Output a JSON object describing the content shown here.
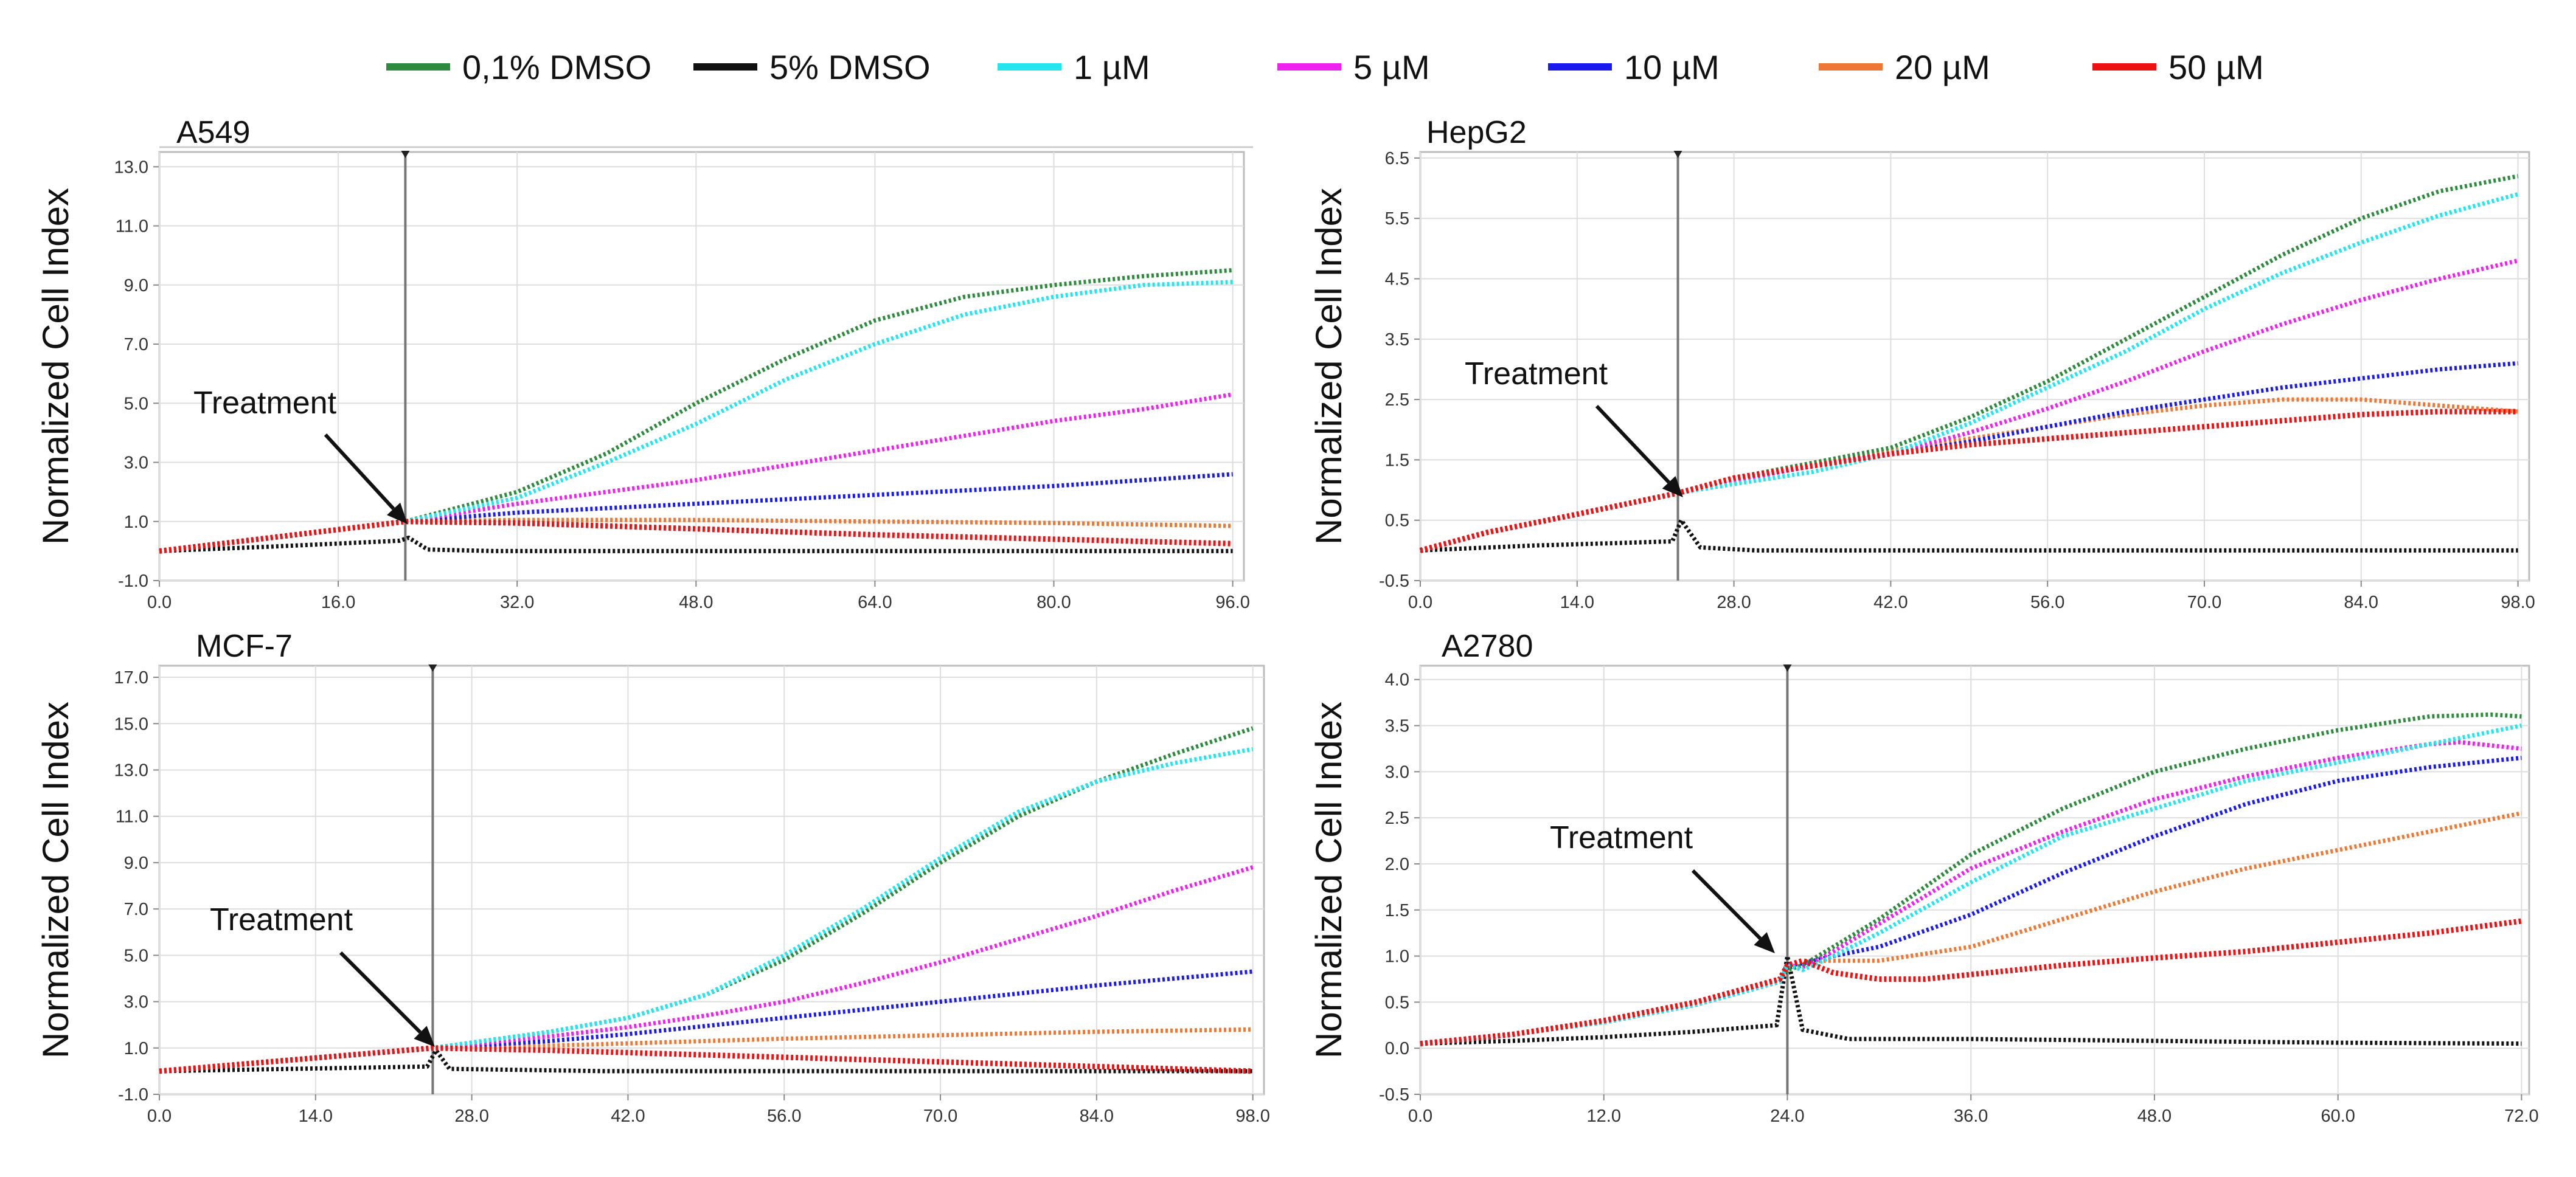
{
  "legend": [
    {
      "label": "0,1% DMSO",
      "color": "#2e8b3e"
    },
    {
      "label": "5% DMSO",
      "color": "#111111"
    },
    {
      "label": "1 µM",
      "color": "#22e5ee"
    },
    {
      "label": "5 µM",
      "color": "#ee22ee"
    },
    {
      "label": "10 µM",
      "color": "#1a1aee"
    },
    {
      "label": "20 µM",
      "color": "#ee7733"
    },
    {
      "label": "50 µM",
      "color": "#ee1111"
    }
  ],
  "chart_data": [
    {
      "type": "line",
      "title": "A549",
      "ylabel": "Normalized Cell Index",
      "xlabel": "",
      "xlim": [
        0,
        97
      ],
      "ylim": [
        -1,
        13.5
      ],
      "xticks": [
        0,
        16,
        32,
        48,
        64,
        80,
        96
      ],
      "xtick_labels": [
        "0.0",
        "16.0",
        "32.0",
        "48.0",
        "64.0",
        "80.0",
        "96.0"
      ],
      "yticks": [
        -1,
        1,
        3,
        5,
        7,
        9,
        11,
        13
      ],
      "ytick_labels": [
        "-1.0",
        "1.0",
        "3.0",
        "5.0",
        "7.0",
        "9.0",
        "11.0",
        "13.0"
      ],
      "treatment_x": 22,
      "annotation": "Treatment",
      "series": [
        {
          "name": "0,1% DMSO",
          "x": [
            0,
            22,
            32,
            40,
            48,
            56,
            64,
            72,
            80,
            88,
            96
          ],
          "y": [
            0,
            1.0,
            2.0,
            3.3,
            5.0,
            6.5,
            7.8,
            8.6,
            9.0,
            9.3,
            9.5
          ]
        },
        {
          "name": "5% DMSO",
          "x": [
            0,
            10,
            21.5,
            22.3,
            24,
            30,
            50,
            70,
            96
          ],
          "y": [
            0,
            0.15,
            0.35,
            0.45,
            0.05,
            0.0,
            0.0,
            0.0,
            0.0
          ]
        },
        {
          "name": "1 µM",
          "x": [
            0,
            22,
            32,
            40,
            48,
            56,
            64,
            72,
            80,
            88,
            96
          ],
          "y": [
            0,
            1.0,
            1.8,
            3.0,
            4.3,
            5.8,
            7.0,
            8.0,
            8.6,
            9.0,
            9.1
          ]
        },
        {
          "name": "5 µM",
          "x": [
            0,
            22,
            32,
            40,
            48,
            56,
            64,
            72,
            80,
            88,
            96
          ],
          "y": [
            0,
            1.0,
            1.6,
            2.0,
            2.4,
            2.9,
            3.4,
            3.9,
            4.4,
            4.8,
            5.3
          ]
        },
        {
          "name": "10 µM",
          "x": [
            0,
            22,
            32,
            48,
            64,
            80,
            96
          ],
          "y": [
            0,
            1.0,
            1.3,
            1.6,
            1.9,
            2.2,
            2.6
          ]
        },
        {
          "name": "20 µM",
          "x": [
            0,
            22,
            32,
            48,
            64,
            80,
            96
          ],
          "y": [
            0,
            1.0,
            1.05,
            1.05,
            1.0,
            0.95,
            0.85
          ]
        },
        {
          "name": "50 µM",
          "x": [
            0,
            22,
            32,
            48,
            64,
            80,
            96
          ],
          "y": [
            0,
            1.0,
            0.95,
            0.75,
            0.55,
            0.4,
            0.25
          ]
        }
      ]
    },
    {
      "type": "line",
      "title": "HepG2",
      "ylabel": "Normalized Cell Index",
      "xlabel": "",
      "xlim": [
        0,
        99
      ],
      "ylim": [
        -0.5,
        6.6
      ],
      "xticks": [
        0,
        14,
        28,
        42,
        56,
        70,
        84,
        98
      ],
      "xtick_labels": [
        "0.0",
        "14.0",
        "28.0",
        "42.0",
        "56.0",
        "70.0",
        "84.0",
        "98.0"
      ],
      "yticks": [
        -0.5,
        0.5,
        1.5,
        2.5,
        3.5,
        4.5,
        5.5,
        6.5
      ],
      "ytick_labels": [
        "-0.5",
        "0.5",
        "1.5",
        "2.5",
        "3.5",
        "4.5",
        "5.5",
        "6.5"
      ],
      "treatment_x": 23,
      "annotation": "Treatment",
      "series": [
        {
          "name": "0,1% DMSO",
          "x": [
            0,
            6,
            14,
            23,
            28,
            35,
            42,
            49,
            56,
            63,
            70,
            77,
            84,
            91,
            98
          ],
          "y": [
            0,
            0.3,
            0.6,
            0.95,
            1.2,
            1.45,
            1.7,
            2.2,
            2.8,
            3.5,
            4.2,
            4.9,
            5.5,
            5.95,
            6.2
          ]
        },
        {
          "name": "5% DMSO",
          "x": [
            0,
            10,
            22.5,
            23.3,
            25,
            30,
            50,
            70,
            98
          ],
          "y": [
            0,
            0.08,
            0.15,
            0.5,
            0.05,
            0.0,
            0.0,
            0.0,
            0.0
          ]
        },
        {
          "name": "1 µM",
          "x": [
            0,
            6,
            14,
            23,
            28,
            35,
            42,
            49,
            56,
            63,
            70,
            77,
            84,
            91,
            98
          ],
          "y": [
            0,
            0.3,
            0.6,
            0.95,
            1.1,
            1.3,
            1.6,
            2.1,
            2.7,
            3.3,
            4.0,
            4.6,
            5.1,
            5.55,
            5.9
          ]
        },
        {
          "name": "5 µM",
          "x": [
            0,
            6,
            14,
            23,
            28,
            35,
            42,
            49,
            56,
            63,
            70,
            77,
            84,
            91,
            98
          ],
          "y": [
            0,
            0.3,
            0.6,
            0.95,
            1.15,
            1.4,
            1.6,
            1.95,
            2.35,
            2.8,
            3.3,
            3.75,
            4.15,
            4.5,
            4.8
          ]
        },
        {
          "name": "10 µM",
          "x": [
            0,
            6,
            14,
            23,
            28,
            35,
            42,
            49,
            56,
            63,
            70,
            77,
            84,
            91,
            98
          ],
          "y": [
            0,
            0.3,
            0.6,
            0.95,
            1.2,
            1.4,
            1.6,
            1.8,
            2.05,
            2.3,
            2.5,
            2.7,
            2.85,
            3.0,
            3.1
          ]
        },
        {
          "name": "20 µM",
          "x": [
            0,
            6,
            14,
            23,
            28,
            35,
            42,
            49,
            56,
            63,
            70,
            77,
            84,
            91,
            98
          ],
          "y": [
            0,
            0.3,
            0.6,
            0.95,
            1.2,
            1.45,
            1.65,
            1.85,
            2.05,
            2.25,
            2.4,
            2.5,
            2.5,
            2.4,
            2.3
          ]
        },
        {
          "name": "50 µM",
          "x": [
            0,
            6,
            14,
            23,
            28,
            35,
            42,
            49,
            56,
            63,
            70,
            77,
            84,
            91,
            98
          ],
          "y": [
            0,
            0.3,
            0.6,
            0.95,
            1.2,
            1.4,
            1.6,
            1.75,
            1.85,
            1.95,
            2.05,
            2.15,
            2.25,
            2.3,
            2.3
          ]
        }
      ]
    },
    {
      "type": "line",
      "title": "MCF-7",
      "ylabel": "Normalized Cell Index",
      "xlabel": "",
      "xlim": [
        0,
        99
      ],
      "ylim": [
        -1,
        17.5
      ],
      "xticks": [
        0,
        14,
        28,
        42,
        56,
        70,
        84,
        98
      ],
      "xtick_labels": [
        "0.0",
        "14.0",
        "28.0",
        "42.0",
        "56.0",
        "70.0",
        "84.0",
        "98.0"
      ],
      "yticks": [
        -1,
        1,
        3,
        5,
        7,
        9,
        11,
        13,
        15,
        17
      ],
      "ytick_labels": [
        "-1.0",
        "1.0",
        "3.0",
        "5.0",
        "7.0",
        "9.0",
        "11.0",
        "13.0",
        "15.0",
        "17.0"
      ],
      "treatment_x": 24.5,
      "annotation": "Treatment",
      "series": [
        {
          "name": "0,1% DMSO",
          "x": [
            0,
            24.5,
            35,
            42,
            49,
            56,
            63,
            70,
            77,
            84,
            91,
            98
          ],
          "y": [
            0,
            1.0,
            1.7,
            2.3,
            3.3,
            4.8,
            6.8,
            9.0,
            11.0,
            12.5,
            13.7,
            14.8
          ]
        },
        {
          "name": "5% DMSO",
          "x": [
            0,
            12,
            24,
            24.8,
            26,
            40,
            60,
            80,
            98
          ],
          "y": [
            0,
            0.1,
            0.2,
            0.9,
            0.1,
            0.0,
            0.0,
            0.0,
            0.0
          ]
        },
        {
          "name": "1 µM",
          "x": [
            0,
            24.5,
            35,
            42,
            49,
            56,
            63,
            70,
            77,
            84,
            91,
            98
          ],
          "y": [
            0,
            1.0,
            1.7,
            2.3,
            3.3,
            5.0,
            7.0,
            9.2,
            11.2,
            12.5,
            13.3,
            13.9
          ]
        },
        {
          "name": "5 µM",
          "x": [
            0,
            24.5,
            35,
            42,
            49,
            56,
            63,
            70,
            77,
            84,
            91,
            98
          ],
          "y": [
            0,
            1.0,
            1.5,
            1.9,
            2.4,
            3.0,
            3.8,
            4.7,
            5.7,
            6.7,
            7.8,
            8.8
          ]
        },
        {
          "name": "10 µM",
          "x": [
            0,
            24.5,
            35,
            42,
            56,
            70,
            84,
            98
          ],
          "y": [
            0,
            1.0,
            1.3,
            1.6,
            2.3,
            3.0,
            3.7,
            4.3
          ]
        },
        {
          "name": "20 µM",
          "x": [
            0,
            24.5,
            35,
            42,
            56,
            70,
            84,
            98
          ],
          "y": [
            0,
            1.0,
            1.1,
            1.2,
            1.4,
            1.55,
            1.7,
            1.8
          ]
        },
        {
          "name": "50 µM",
          "x": [
            0,
            24.5,
            35,
            42,
            56,
            70,
            84,
            98
          ],
          "y": [
            0,
            1.0,
            0.9,
            0.8,
            0.6,
            0.4,
            0.2,
            0.0
          ]
        }
      ]
    },
    {
      "type": "line",
      "title": "A2780",
      "ylabel": "Normalized Cell Index",
      "xlabel": "",
      "xlim": [
        0,
        72.5
      ],
      "ylim": [
        -0.5,
        4.15
      ],
      "xticks": [
        0,
        12,
        24,
        36,
        48,
        60,
        72
      ],
      "xtick_labels": [
        "0.0",
        "12.0",
        "24.0",
        "36.0",
        "48.0",
        "60.0",
        "72.0"
      ],
      "yticks": [
        -0.5,
        0,
        0.5,
        1,
        1.5,
        2,
        2.5,
        3,
        3.5,
        4
      ],
      "ytick_labels": [
        "-0.5",
        "0.0",
        "0.5",
        "1.0",
        "1.5",
        "2.0",
        "2.5",
        "3.0",
        "3.5",
        "4.0"
      ],
      "treatment_x": 24,
      "annotation": "Treatment",
      "series": [
        {
          "name": "0,1% DMSO",
          "x": [
            0,
            6,
            12,
            18,
            23.5,
            24,
            25,
            27,
            30,
            36,
            42,
            48,
            54,
            60,
            66,
            70,
            72
          ],
          "y": [
            0.05,
            0.15,
            0.3,
            0.5,
            0.75,
            0.85,
            0.9,
            1.1,
            1.4,
            2.1,
            2.6,
            3.0,
            3.25,
            3.45,
            3.6,
            3.62,
            3.6
          ]
        },
        {
          "name": "5% DMSO",
          "x": [
            0,
            6,
            12,
            18,
            23.3,
            24,
            25,
            28,
            36,
            48,
            60,
            72
          ],
          "y": [
            0.05,
            0.08,
            0.12,
            0.18,
            0.25,
            1.0,
            0.2,
            0.1,
            0.1,
            0.08,
            0.06,
            0.05
          ]
        },
        {
          "name": "1 µM",
          "x": [
            0,
            6,
            12,
            18,
            23.5,
            24,
            25,
            27,
            30,
            36,
            42,
            48,
            54,
            60,
            66,
            72
          ],
          "y": [
            0.05,
            0.15,
            0.28,
            0.47,
            0.72,
            0.9,
            0.85,
            1.0,
            1.25,
            1.8,
            2.3,
            2.6,
            2.9,
            3.1,
            3.3,
            3.5
          ]
        },
        {
          "name": "5 µM",
          "x": [
            0,
            6,
            12,
            18,
            23.5,
            24,
            25,
            27,
            30,
            36,
            42,
            48,
            54,
            60,
            66,
            68,
            72
          ],
          "y": [
            0.05,
            0.15,
            0.28,
            0.47,
            0.72,
            0.9,
            0.88,
            1.05,
            1.35,
            1.95,
            2.35,
            2.7,
            2.95,
            3.15,
            3.3,
            3.32,
            3.25
          ]
        },
        {
          "name": "10 µM",
          "x": [
            0,
            6,
            12,
            18,
            23.5,
            24,
            25,
            27,
            30,
            36,
            42,
            48,
            54,
            60,
            66,
            72
          ],
          "y": [
            0.05,
            0.15,
            0.3,
            0.5,
            0.75,
            0.9,
            0.92,
            1.0,
            1.1,
            1.45,
            1.9,
            2.3,
            2.65,
            2.9,
            3.05,
            3.15
          ]
        },
        {
          "name": "20 µM",
          "x": [
            0,
            6,
            12,
            18,
            23.5,
            24,
            25,
            27,
            30,
            36,
            42,
            48,
            54,
            60,
            66,
            72
          ],
          "y": [
            0.05,
            0.15,
            0.3,
            0.5,
            0.75,
            0.9,
            0.95,
            0.95,
            0.95,
            1.1,
            1.4,
            1.7,
            1.95,
            2.15,
            2.35,
            2.55
          ]
        },
        {
          "name": "50 µM",
          "x": [
            0,
            6,
            12,
            18,
            23.5,
            24,
            25,
            27,
            30,
            33,
            36,
            42,
            48,
            54,
            60,
            66,
            72
          ],
          "y": [
            0.05,
            0.15,
            0.3,
            0.5,
            0.75,
            0.9,
            0.95,
            0.82,
            0.75,
            0.75,
            0.8,
            0.9,
            0.98,
            1.05,
            1.15,
            1.25,
            1.38
          ]
        }
      ]
    }
  ]
}
